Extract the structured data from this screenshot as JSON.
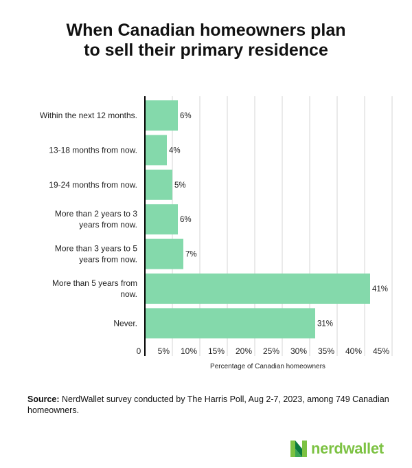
{
  "title_line1": "When Canadian homeowners plan",
  "title_line2": "to sell their primary residence",
  "chart_data": {
    "type": "bar",
    "orientation": "horizontal",
    "title": "When Canadian homeowners plan to sell their primary residence",
    "categories": [
      [
        "Within the next 12 months."
      ],
      [
        "13-18 months from now."
      ],
      [
        "19-24 months from now."
      ],
      [
        "More than 2 years to 3",
        "years from now."
      ],
      [
        "More than 3 years to 5",
        "years from now."
      ],
      [
        "More than 5 years from",
        "now."
      ],
      [
        "Never."
      ]
    ],
    "values": [
      6,
      4,
      5,
      6,
      7,
      41,
      31
    ],
    "data_labels": [
      "6%",
      "4%",
      "5%",
      "6%",
      "7%",
      "41%",
      "31%"
    ],
    "xlabel": "Percentage of Canadian homeowners",
    "xlim": [
      0,
      45
    ],
    "x_ticks": [
      0,
      5,
      10,
      15,
      20,
      25,
      30,
      35,
      40,
      45
    ],
    "x_tick_labels": [
      "0",
      "5%",
      "10%",
      "15%",
      "20%",
      "25%",
      "30%",
      "35%",
      "40%",
      "45%"
    ],
    "grid": "vertical",
    "bar_color": "#84d9ab"
  },
  "source_label": "Source:",
  "source_text": " NerdWallet survey conducted by The Harris Poll, Aug 2-7, 2023, among 749 Canadian homeowners.",
  "logo_text": "nerdwallet"
}
